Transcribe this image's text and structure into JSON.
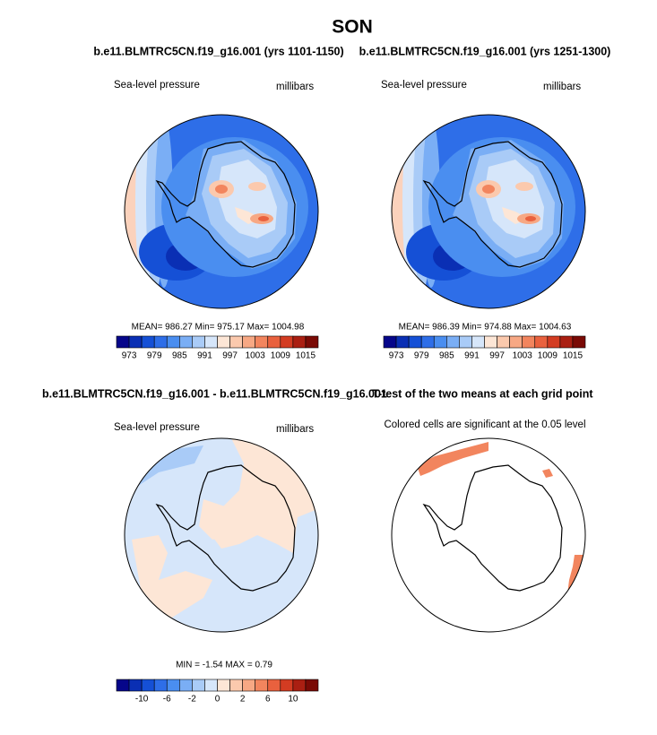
{
  "title": "SON",
  "colorbar_colors": [
    "#06068a",
    "#0a2fb4",
    "#1550d6",
    "#2e6ee8",
    "#4a8ef0",
    "#7aaef5",
    "#a9cbf7",
    "#d6e6fa",
    "#fde6d6",
    "#fbc9ad",
    "#f7a884",
    "#f2855e",
    "#e9613e",
    "#d33c22",
    "#aa1f12",
    "#7a0a05"
  ],
  "panels": [
    {
      "title": "b.e11.BLMTRC5CN.f19_g16.001 (yrs 1101-1150)",
      "left_label": "Sea-level pressure",
      "right_label": "millibars",
      "stats": "MEAN= 986.27  Min= 975.17  Max= 1004.98",
      "colorbar": {
        "labels": [
          973,
          979,
          985,
          991,
          997,
          1003,
          1009,
          1015
        ]
      }
    },
    {
      "title": "b.e11.BLMTRC5CN.f19_g16.001 (yrs 1251-1300)",
      "left_label": "Sea-level pressure",
      "right_label": "millibars",
      "stats": "MEAN= 986.39  Min= 974.88  Max= 1004.63",
      "colorbar": {
        "labels": [
          973,
          979,
          985,
          991,
          997,
          1003,
          1009,
          1015
        ]
      }
    },
    {
      "title": "b.e11.BLMTRC5CN.f19_g16.001 - b.e11.BLMTRC5CN.f19_g16.001",
      "left_label": "Sea-level pressure",
      "right_label": "millibars",
      "stats": "MIN =  -1.54 MAX =   0.79",
      "colorbar": {
        "labels": [
          -10,
          -6,
          -2,
          0,
          2,
          6,
          10
        ]
      }
    },
    {
      "title": "T-test of the two means at each grid point",
      "left_label": "Colored cells are significant at the 0.05 level"
    }
  ]
}
